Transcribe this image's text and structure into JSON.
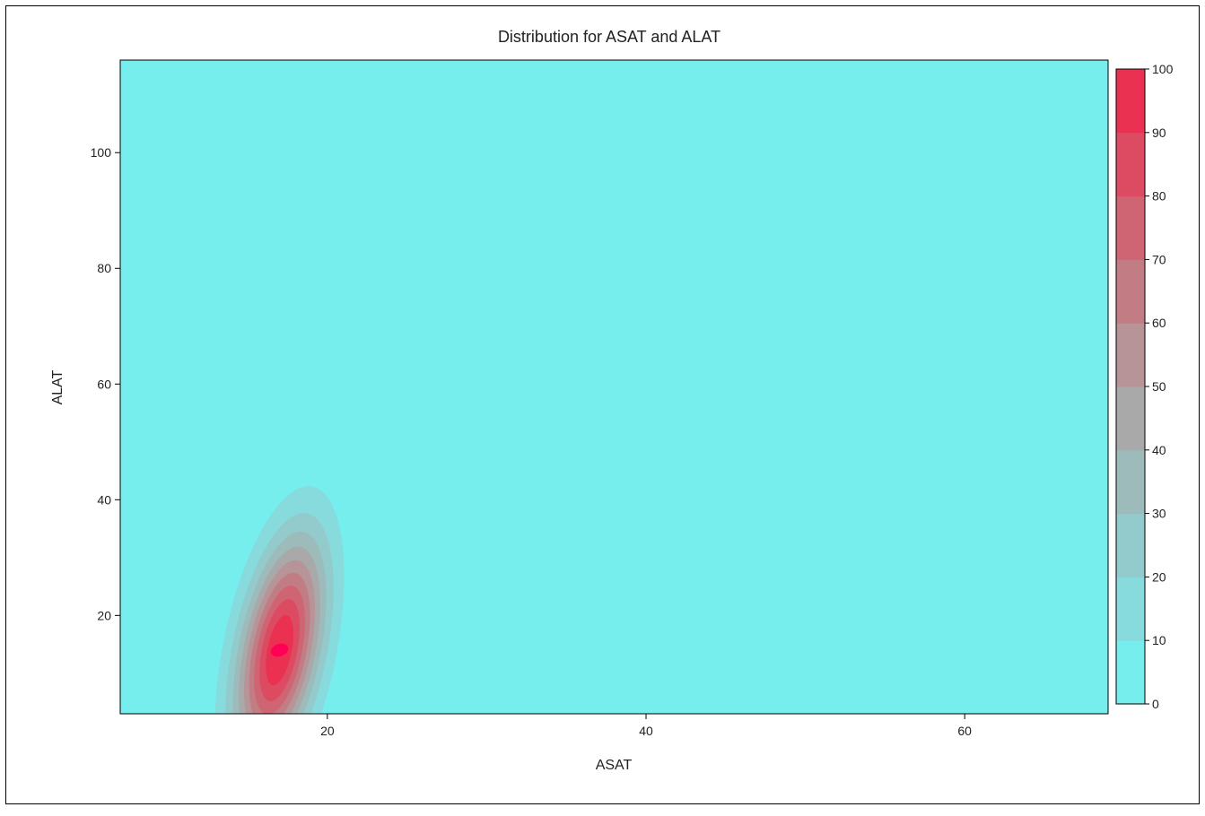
{
  "chart_data": {
    "type": "heatmap",
    "subtype": "filled-contour",
    "title": "Distribution for ASAT and ALAT",
    "xlabel": "ASAT",
    "ylabel": "ALAT",
    "xlim": [
      7,
      69
    ],
    "ylim": [
      3,
      116
    ],
    "xticks": [
      20,
      40,
      60
    ],
    "yticks": [
      20,
      40,
      60,
      80,
      100
    ],
    "grid": false,
    "density_peak": {
      "x": 17,
      "y": 14,
      "value": 100
    },
    "density_spread": {
      "sx": 4.8,
      "sy": 5.2,
      "rho": 0.45
    },
    "colorbar": {
      "min": 0,
      "max": 100,
      "ticks": [
        0,
        10,
        20,
        30,
        40,
        50,
        60,
        70,
        80,
        90,
        100
      ],
      "band_colors": [
        "#77EEEE",
        "#87DBDC",
        "#93CACB",
        "#9EBBBB",
        "#A9A9A9",
        "#B69497",
        "#C27C84",
        "#CF6473",
        "#DD4B62",
        "#EB3151"
      ],
      "low_color": "#77EEEE",
      "high_color": "#FF0055",
      "position": "right"
    }
  }
}
